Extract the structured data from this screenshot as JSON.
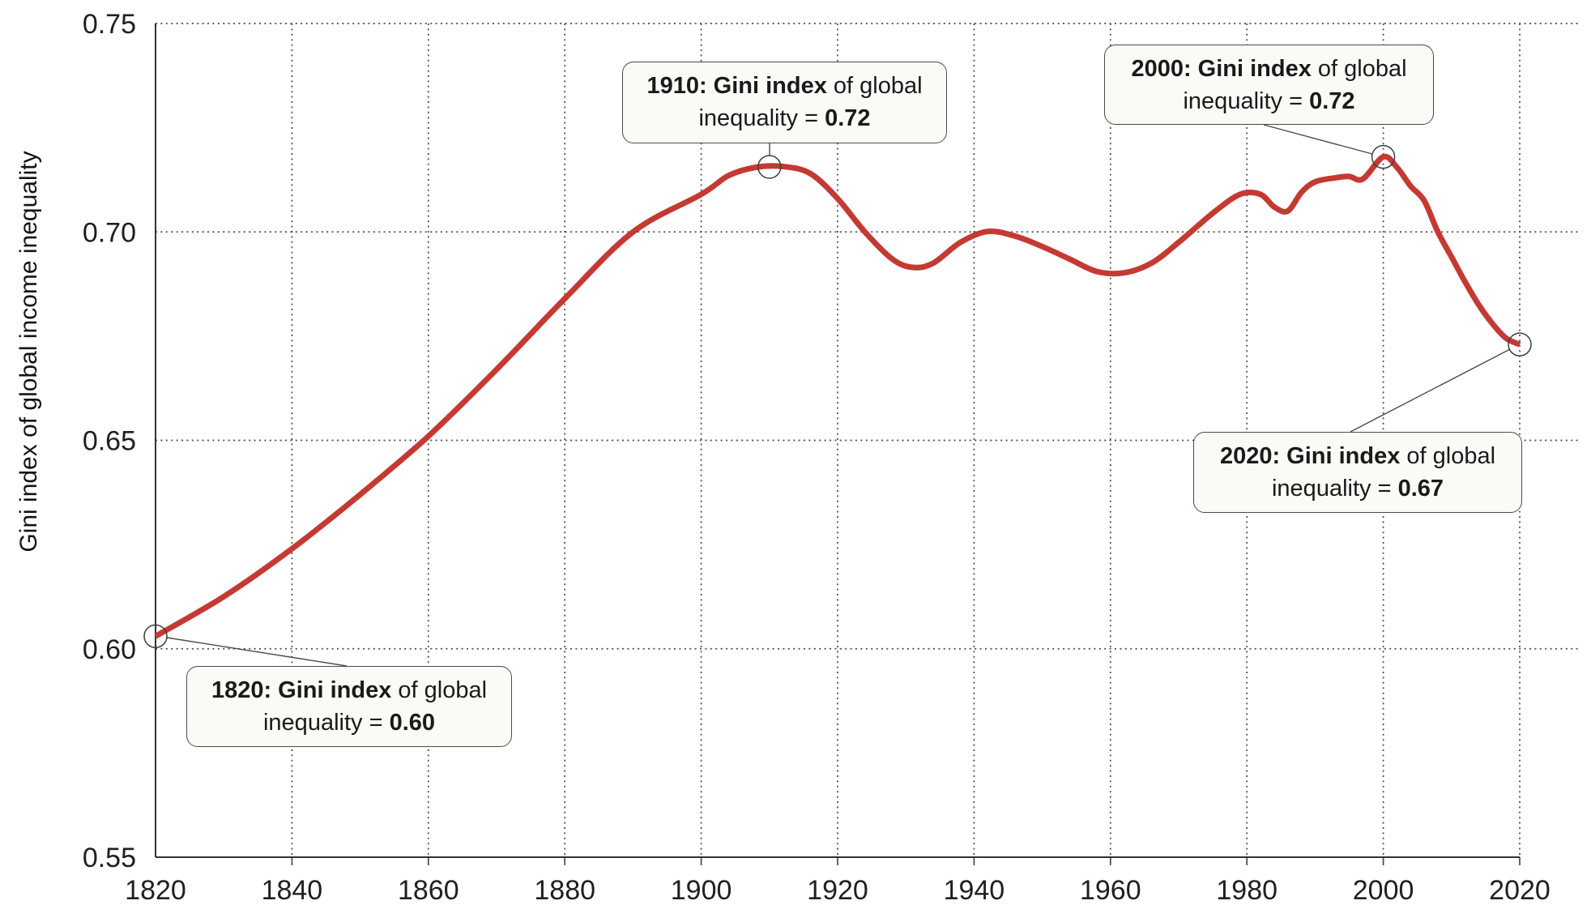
{
  "chart_data": {
    "type": "line",
    "title": "",
    "xlabel": "",
    "ylabel": "Gini index of global income inequality",
    "xlim": [
      1820,
      2020
    ],
    "ylim": [
      0.55,
      0.75
    ],
    "grid": "dotted",
    "legend": "none",
    "line_color": "#c43a33",
    "x_ticks": [
      "1820",
      "1840",
      "1860",
      "1880",
      "1900",
      "1920",
      "1940",
      "1960",
      "1980",
      "2000",
      "2020"
    ],
    "x_tick_years": [
      1820,
      1840,
      1860,
      1880,
      1900,
      1920,
      1940,
      1960,
      1980,
      2000,
      2020
    ],
    "y_ticks": [
      "0.75",
      "0.70",
      "0.65",
      "0.60",
      "0.55"
    ],
    "y_tick_values": [
      0.75,
      0.7,
      0.65,
      0.6,
      0.55
    ],
    "series": [
      {
        "name": "Gini index of global income inequality",
        "points": [
          [
            1820,
            0.603
          ],
          [
            1830,
            0.6125
          ],
          [
            1840,
            0.624
          ],
          [
            1850,
            0.637
          ],
          [
            1860,
            0.651
          ],
          [
            1870,
            0.667
          ],
          [
            1880,
            0.684
          ],
          [
            1890,
            0.7
          ],
          [
            1900,
            0.709
          ],
          [
            1904,
            0.7135
          ],
          [
            1908,
            0.7155
          ],
          [
            1912,
            0.7157
          ],
          [
            1916,
            0.714
          ],
          [
            1920,
            0.708
          ],
          [
            1924,
            0.7
          ],
          [
            1928,
            0.6935
          ],
          [
            1931,
            0.6915
          ],
          [
            1934,
            0.6925
          ],
          [
            1938,
            0.6975
          ],
          [
            1942,
            0.7001
          ],
          [
            1946,
            0.699
          ],
          [
            1950,
            0.6965
          ],
          [
            1954,
            0.6935
          ],
          [
            1958,
            0.6905
          ],
          [
            1962,
            0.6902
          ],
          [
            1966,
            0.6925
          ],
          [
            1970,
            0.6975
          ],
          [
            1975,
            0.7045
          ],
          [
            1979,
            0.709
          ],
          [
            1982,
            0.709
          ],
          [
            1984,
            0.706
          ],
          [
            1986,
            0.705
          ],
          [
            1988,
            0.7095
          ],
          [
            1990,
            0.712
          ],
          [
            1993,
            0.713
          ],
          [
            1995,
            0.7133
          ],
          [
            1997,
            0.7127
          ],
          [
            2000,
            0.718
          ],
          [
            2002,
            0.7155
          ],
          [
            2004,
            0.711
          ],
          [
            2006,
            0.7075
          ],
          [
            2008,
            0.7
          ],
          [
            2010,
            0.694
          ],
          [
            2012,
            0.688
          ],
          [
            2014,
            0.6825
          ],
          [
            2016,
            0.678
          ],
          [
            2018,
            0.6745
          ],
          [
            2020,
            0.673
          ]
        ]
      }
    ],
    "markers": [
      {
        "year": 1820,
        "value": 0.603
      },
      {
        "year": 1910,
        "value": 0.7156
      },
      {
        "year": 2000,
        "value": 0.718
      },
      {
        "year": 2020,
        "value": 0.673
      }
    ]
  },
  "annotations": [
    {
      "line1_bold": "1820: Gini index",
      "line1_rest": " of global",
      "line2_rest": "inequality = ",
      "line2_bold": "0.60"
    },
    {
      "line1_bold": "1910: Gini index",
      "line1_rest": " of global",
      "line2_rest": "inequality = ",
      "line2_bold": "0.72"
    },
    {
      "line1_bold": "2000: Gini index",
      "line1_rest": " of global",
      "line2_rest": "inequality = ",
      "line2_bold": "0.72"
    },
    {
      "line1_bold": "2020: Gini index",
      "line1_rest": " of global",
      "line2_rest": "inequality = ",
      "line2_bold": "0.67"
    }
  ]
}
